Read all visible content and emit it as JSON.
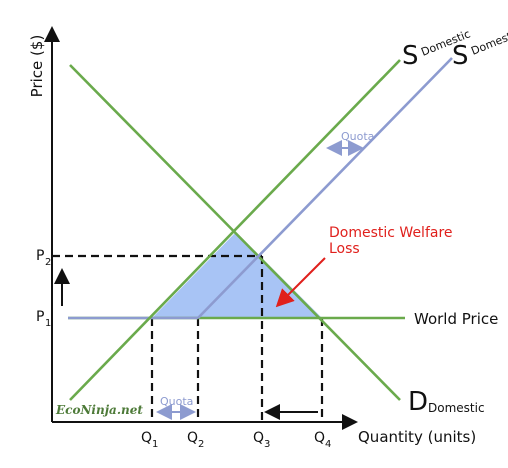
{
  "axes": {
    "y_label": "Price ($)",
    "x_label": "Quantity (units)"
  },
  "curves": {
    "supply_domestic": {
      "letter": "S",
      "sub": "Domestic"
    },
    "supply_quota": {
      "letter": "S",
      "sub": "Domestic+Quota"
    },
    "demand": {
      "letter": "D",
      "sub": "Domestic"
    },
    "world_price": "World Price"
  },
  "prices": [
    {
      "letter": "P",
      "sub": "2"
    },
    {
      "letter": "P",
      "sub": "1"
    }
  ],
  "quantities": [
    {
      "letter": "Q",
      "sub": "1"
    },
    {
      "letter": "Q",
      "sub": "2"
    },
    {
      "letter": "Q",
      "sub": "3"
    },
    {
      "letter": "Q",
      "sub": "4"
    }
  ],
  "annotations": {
    "quota_top": "Quota",
    "quota_bottom": "Quota",
    "welfare_loss": [
      "Domestic Welfare",
      "Loss"
    ],
    "watermark": "EcoNinja.net"
  }
}
